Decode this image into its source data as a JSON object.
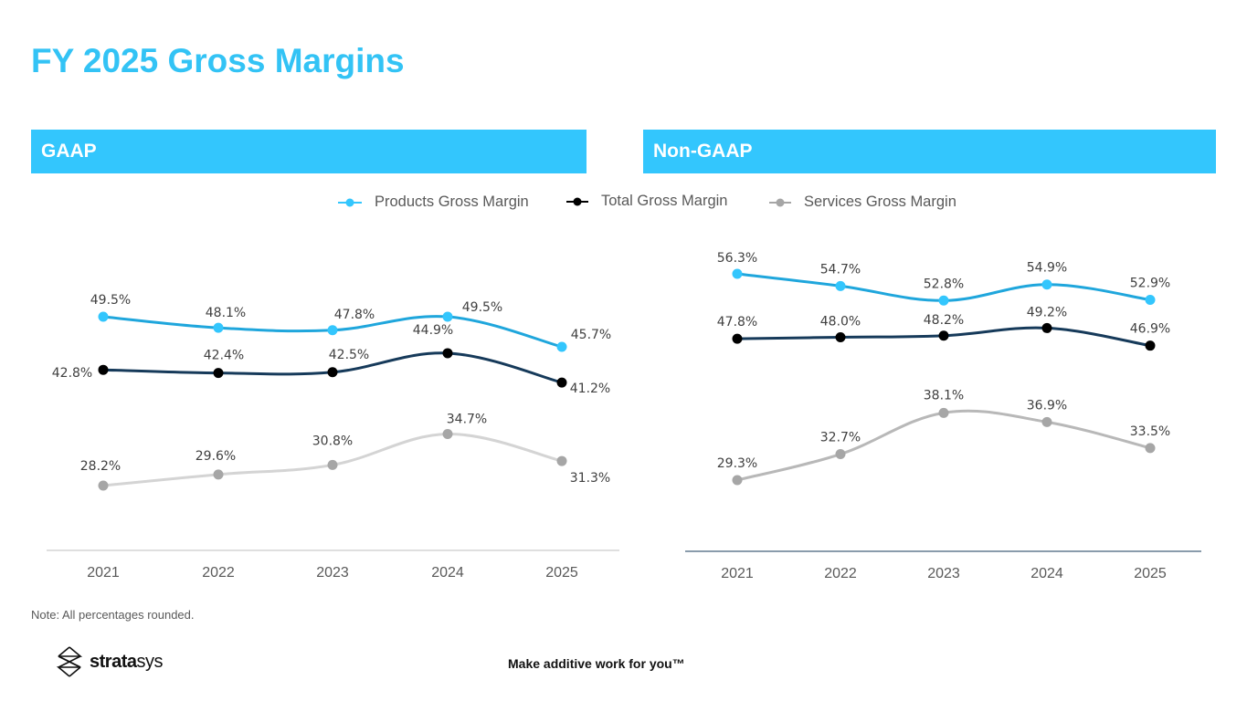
{
  "page": {
    "title": "FY 2025 Gross Margins",
    "note": "Note: All percentages rounded.",
    "brand": {
      "strong": "strata",
      "light": "sys"
    },
    "tagline": "Make additive work for you™",
    "colors": {
      "accent": "#33c6fd",
      "title": "#33c3f5",
      "products": "#1fa6dc",
      "products_marker": "#33c6fd",
      "total": "#163a5a",
      "total_marker": "#000000",
      "services_gaap": "#d0d0d0",
      "services_nongaap": "#b5b5b5",
      "services_marker": "#a6a6a6"
    }
  },
  "panels": {
    "gaap": {
      "label": "GAAP"
    },
    "nongaap": {
      "label": "Non-GAAP"
    }
  },
  "legend": [
    {
      "name": "Products Gross Margin",
      "color": "#33c6fd"
    },
    {
      "name": "Total Gross Margin",
      "color": "#000000"
    },
    {
      "name": "Services Gross Margin",
      "color": "#a6a6a6"
    }
  ],
  "chart_data": [
    {
      "type": "line",
      "title": "GAAP",
      "categories": [
        "2021",
        "2022",
        "2023",
        "2024",
        "2025"
      ],
      "xlabel": "",
      "ylabel": "",
      "grid": false,
      "legend": "top-center",
      "series": [
        {
          "name": "Products Gross Margin",
          "values": [
            49.5,
            48.1,
            47.8,
            49.5,
            45.7
          ],
          "labels": [
            "49.5%",
            "48.1%",
            "47.8%",
            "49.5%",
            "45.7%"
          ]
        },
        {
          "name": "Total Gross Margin",
          "values": [
            42.8,
            42.4,
            42.5,
            44.9,
            41.2
          ],
          "labels": [
            "42.8%",
            "42.4%",
            "42.5%",
            "44.9%",
            "41.2%"
          ]
        },
        {
          "name": "Services Gross Margin",
          "values": [
            28.2,
            29.6,
            30.8,
            34.7,
            31.3
          ],
          "labels": [
            "28.2%",
            "29.6%",
            "30.8%",
            "34.7%",
            "31.3%"
          ]
        }
      ]
    },
    {
      "type": "line",
      "title": "Non-GAAP",
      "categories": [
        "2021",
        "2022",
        "2023",
        "2024",
        "2025"
      ],
      "xlabel": "",
      "ylabel": "",
      "grid": false,
      "legend": "top-center",
      "series": [
        {
          "name": "Products Gross Margin",
          "values": [
            56.3,
            54.7,
            52.8,
            54.9,
            52.9
          ],
          "labels": [
            "56.3%",
            "54.7%",
            "52.8%",
            "54.9%",
            "52.9%"
          ]
        },
        {
          "name": "Total Gross Margin",
          "values": [
            47.8,
            48.0,
            48.2,
            49.2,
            46.9
          ],
          "labels": [
            "47.8%",
            "48.0%",
            "48.2%",
            "49.2%",
            "46.9%"
          ]
        },
        {
          "name": "Services Gross Margin",
          "values": [
            29.3,
            32.7,
            38.1,
            36.9,
            33.5
          ],
          "labels": [
            "29.3%",
            "32.7%",
            "38.1%",
            "36.9%",
            "33.5%"
          ]
        }
      ]
    }
  ]
}
